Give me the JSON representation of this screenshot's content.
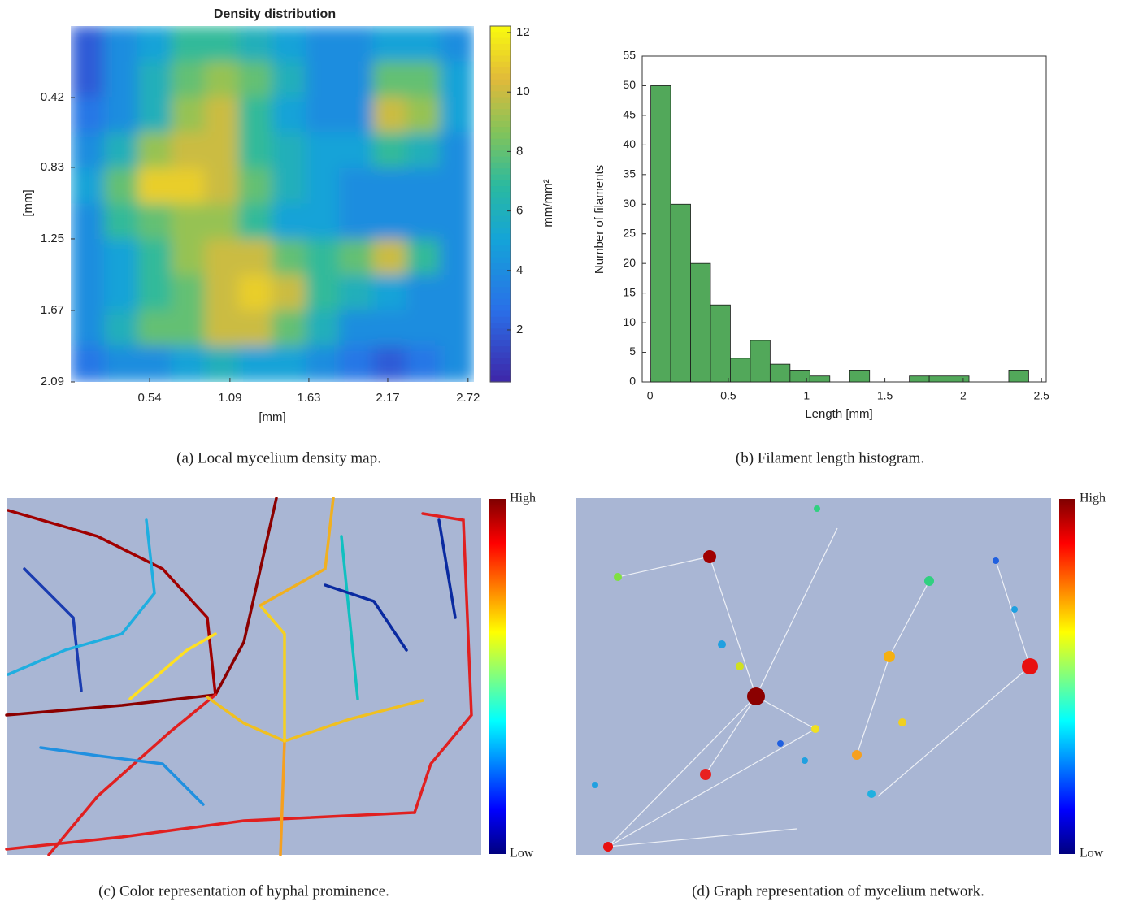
{
  "chart_data": [
    {
      "type": "heatmap",
      "title": "Density distribution",
      "xlabel": "[mm]",
      "ylabel": "[mm]",
      "colorbar_label": "mm/mm²",
      "caption": "(a) Local mycelium density map.",
      "xlim": [
        0,
        2.76
      ],
      "ylim": [
        0,
        2.09
      ],
      "y_reversed": true,
      "xticks": [
        0.54,
        1.09,
        1.63,
        2.17,
        2.72
      ],
      "yticks": [
        0.42,
        0.83,
        1.25,
        1.67,
        2.09
      ],
      "clim": [
        0.25,
        12.22
      ],
      "cticks": [
        2,
        4,
        6,
        8,
        10,
        12
      ],
      "colormap": "parula",
      "values": [
        [
          2,
          4,
          5,
          7,
          7,
          6,
          5,
          4,
          4,
          5,
          5,
          4
        ],
        [
          2,
          4,
          6,
          8,
          9,
          8,
          6,
          4,
          4,
          8,
          8,
          5
        ],
        [
          3,
          4,
          6,
          9,
          10,
          7,
          5,
          4,
          4,
          10,
          9,
          5
        ],
        [
          4,
          6,
          9,
          10,
          10,
          7,
          6,
          5,
          5,
          7,
          6,
          4
        ],
        [
          5,
          8,
          11,
          11,
          10,
          8,
          6,
          5,
          4,
          4,
          4,
          4
        ],
        [
          4,
          7,
          8,
          9,
          9,
          7,
          5,
          5,
          4,
          4,
          4,
          4
        ],
        [
          4,
          5,
          7,
          9,
          10,
          10,
          8,
          7,
          8,
          10,
          7,
          4
        ],
        [
          4,
          5,
          7,
          8,
          10,
          11,
          10,
          7,
          6,
          5,
          4,
          4
        ],
        [
          4,
          6,
          8,
          8,
          10,
          10,
          8,
          6,
          4,
          4,
          4,
          4
        ],
        [
          3,
          4,
          4,
          5,
          6,
          5,
          5,
          4,
          3,
          2,
          3,
          4
        ]
      ]
    },
    {
      "type": "histogram",
      "xlabel": "Length [mm]",
      "ylabel": "Number of filaments",
      "caption": "(b) Filament length histogram.",
      "color": "#52a85a",
      "edgecolor": "#1a1a1a",
      "bins": [
        0.005,
        0.132,
        0.259,
        0.386,
        0.513,
        0.64,
        0.767,
        0.894,
        1.021,
        1.148,
        1.275,
        1.402,
        1.529,
        1.656,
        1.783,
        1.91,
        2.037,
        2.164,
        2.291,
        2.418
      ],
      "counts": [
        50,
        30,
        20,
        13,
        4,
        7,
        3,
        2,
        1,
        0,
        2,
        0,
        0,
        1,
        1,
        1,
        0,
        0,
        2
      ],
      "xlim": [
        -0.05,
        2.53
      ],
      "ylim": [
        0,
        55
      ],
      "xticks": [
        0,
        0.5,
        1,
        1.5,
        2,
        2.5
      ],
      "yticks": [
        0,
        5,
        10,
        15,
        20,
        25,
        30,
        35,
        40,
        45,
        50,
        55
      ]
    },
    {
      "type": "image",
      "caption": "(c) Color representation of hyphal prominence.",
      "colormap": "jet",
      "colorbar_high": "High",
      "colorbar_low": "Low"
    },
    {
      "type": "image",
      "caption": "(d) Graph representation of mycelium network.",
      "colormap": "jet",
      "colorbar_high": "High",
      "colorbar_low": "Low"
    }
  ]
}
